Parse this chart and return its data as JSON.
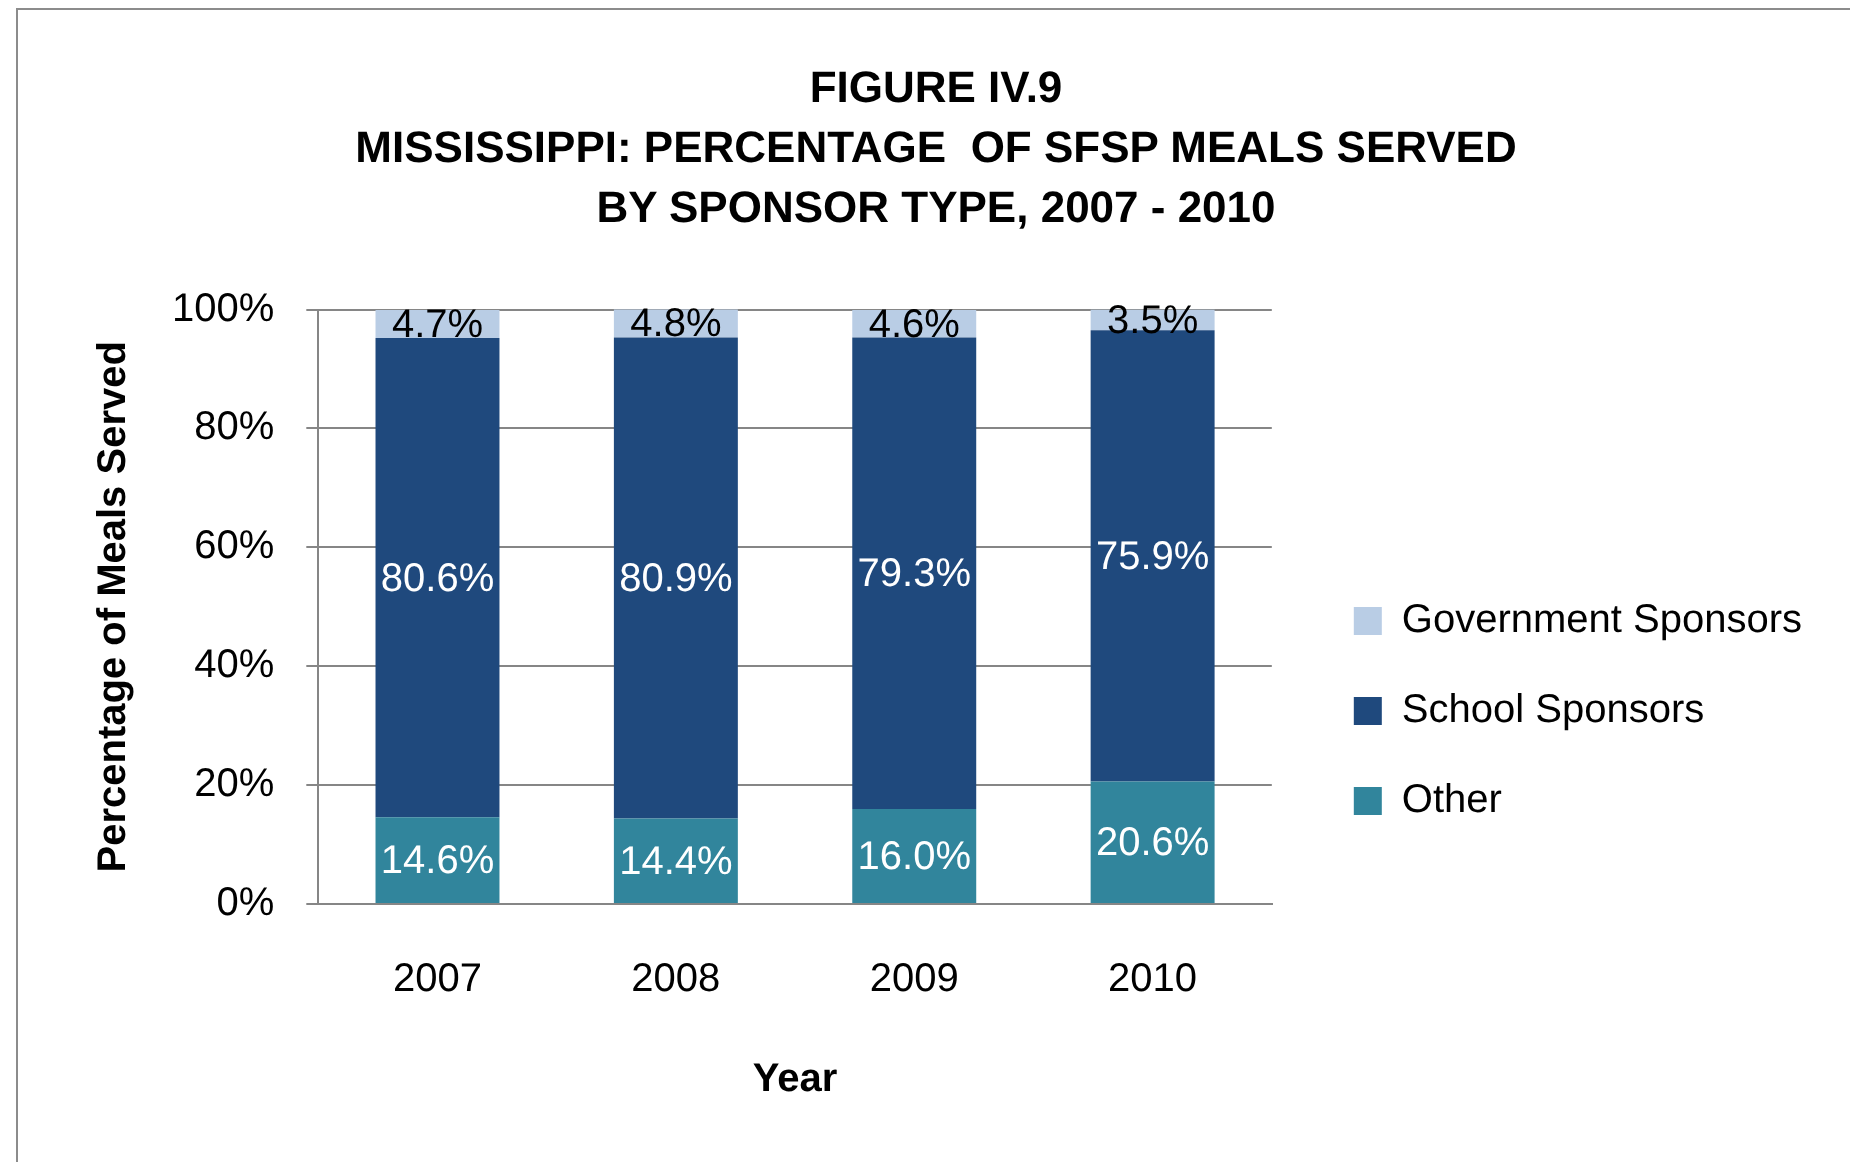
{
  "chart_data": {
    "type": "bar",
    "title": "FIGURE IV.9\nMISSISSIPPI: PERCENTAGE  OF SFSP MEALS SERVED\nBY SPONSOR TYPE, 2007 - 2010",
    "xlabel": "Year",
    "ylabel": "Percentage of Meals Served",
    "categories": [
      "2007",
      "2008",
      "2009",
      "2010"
    ],
    "series": [
      {
        "name": "Other",
        "color": "#31859c",
        "values": [
          14.6,
          14.4,
          16.0,
          20.6
        ],
        "value_labels": [
          "14.6%",
          "14.4%",
          "16.0%",
          "20.6%"
        ]
      },
      {
        "name": "School Sponsors",
        "color": "#1f497d",
        "values": [
          80.6,
          80.9,
          79.3,
          75.9
        ],
        "value_labels": [
          "80.6%",
          "80.9%",
          "79.3%",
          "75.9%"
        ]
      },
      {
        "name": "Government Sponsors",
        "color": "#b9cde5",
        "values": [
          4.7,
          4.8,
          4.6,
          3.5
        ],
        "value_labels": [
          "4.7%",
          "4.8%",
          "4.6%",
          "3.5%"
        ]
      }
    ],
    "stacked": true,
    "ylim": [
      0,
      100
    ],
    "yticks": [
      {
        "value": 0,
        "label": "0%"
      },
      {
        "value": 20,
        "label": "20%"
      },
      {
        "value": 40,
        "label": "40%"
      },
      {
        "value": 60,
        "label": "60%"
      },
      {
        "value": 80,
        "label": "80%"
      },
      {
        "value": 100,
        "label": "100%"
      }
    ],
    "grid": "y",
    "legend": "right"
  }
}
